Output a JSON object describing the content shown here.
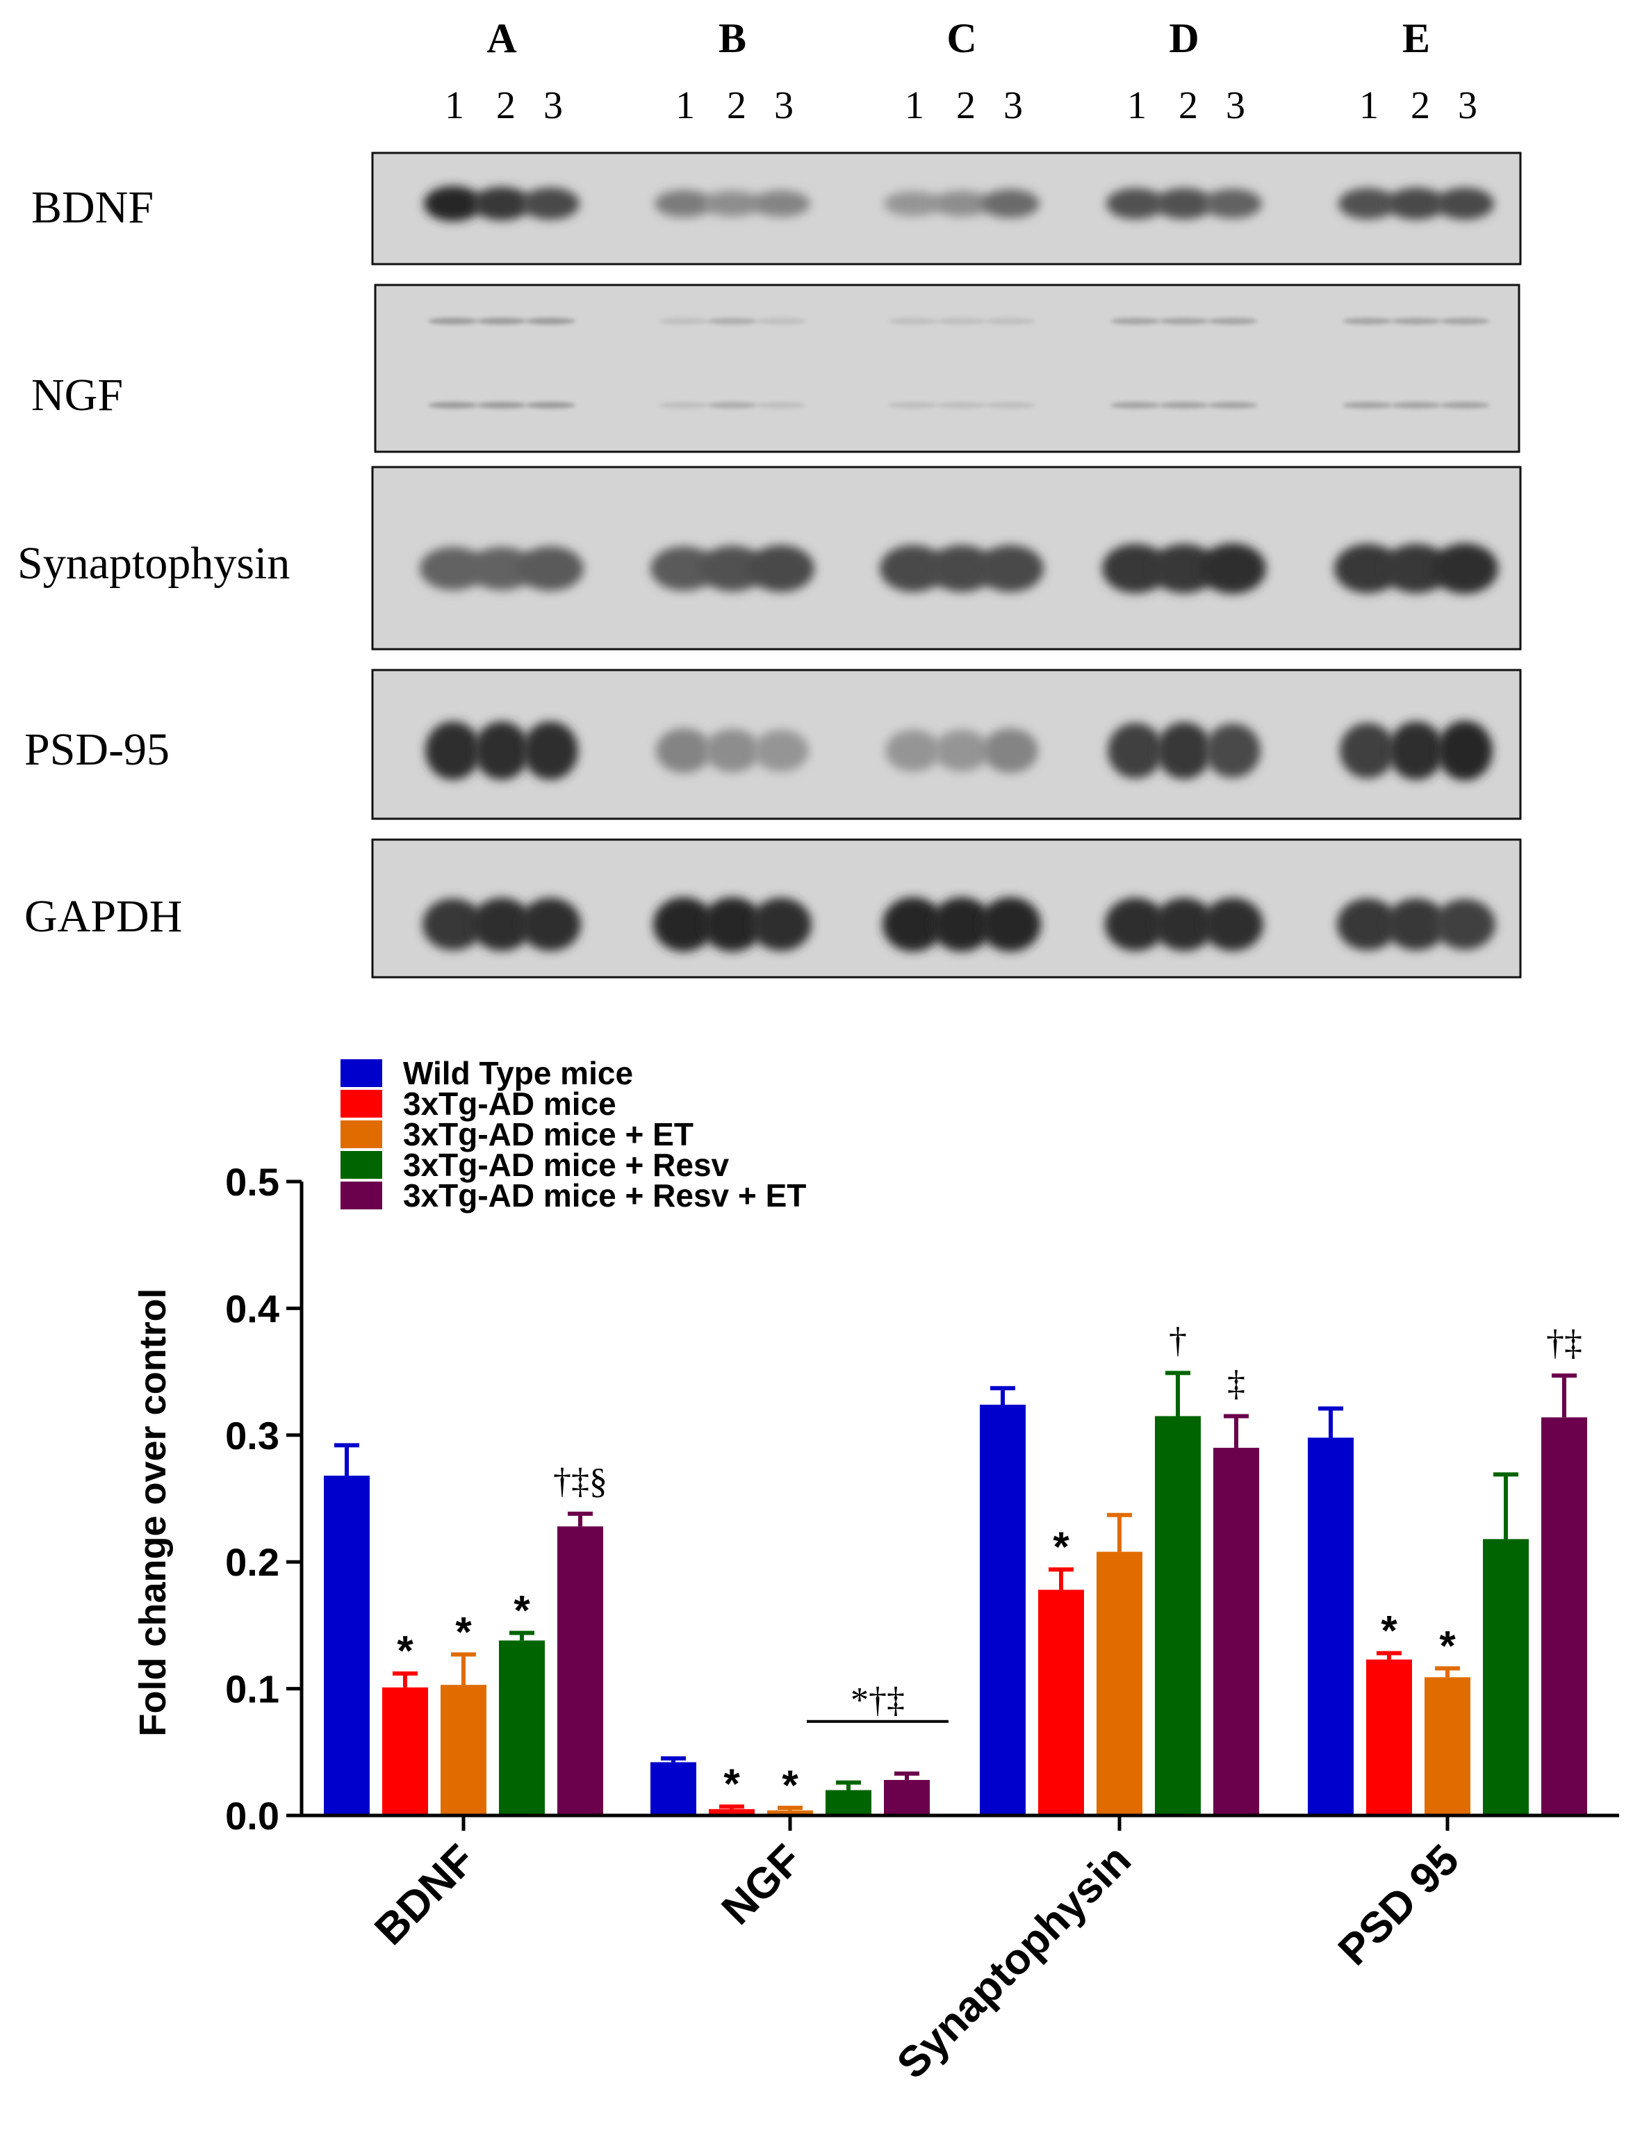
{
  "blot": {
    "groups": [
      "A",
      "B",
      "C",
      "D",
      "E"
    ],
    "lanes": [
      "1",
      "2",
      "3"
    ],
    "rows": [
      {
        "label": "BDNF",
        "intensity": [
          [
            0.95,
            0.85,
            0.75
          ],
          [
            0.45,
            0.35,
            0.4
          ],
          [
            0.3,
            0.35,
            0.55
          ],
          [
            0.7,
            0.7,
            0.6
          ],
          [
            0.7,
            0.75,
            0.75
          ]
        ]
      },
      {
        "label": "NGF",
        "intensity": [
          [
            0.25,
            0.25,
            0.25
          ],
          [
            0.05,
            0.15,
            0.05
          ],
          [
            0.05,
            0.05,
            0.05
          ],
          [
            0.2,
            0.2,
            0.2
          ],
          [
            0.2,
            0.2,
            0.2
          ]
        ]
      },
      {
        "label": "Synaptophysin",
        "intensity": [
          [
            0.6,
            0.6,
            0.65
          ],
          [
            0.65,
            0.7,
            0.75
          ],
          [
            0.75,
            0.75,
            0.75
          ],
          [
            0.85,
            0.85,
            0.9
          ],
          [
            0.85,
            0.85,
            0.9
          ]
        ]
      },
      {
        "label": "PSD-95",
        "intensity": [
          [
            0.9,
            0.9,
            0.9
          ],
          [
            0.4,
            0.35,
            0.3
          ],
          [
            0.3,
            0.3,
            0.4
          ],
          [
            0.8,
            0.85,
            0.75
          ],
          [
            0.8,
            0.9,
            0.95
          ]
        ]
      },
      {
        "label": "GAPDH",
        "intensity": [
          [
            0.85,
            0.9,
            0.9
          ],
          [
            0.95,
            0.95,
            0.9
          ],
          [
            0.95,
            0.95,
            0.95
          ],
          [
            0.9,
            0.9,
            0.9
          ],
          [
            0.85,
            0.85,
            0.8
          ]
        ]
      }
    ]
  },
  "chart_data": {
    "type": "bar",
    "title": "",
    "xlabel": "",
    "ylabel": "Fold change over control",
    "ylim": [
      0,
      0.5
    ],
    "yticks": [
      "0.0",
      "0.1",
      "0.2",
      "0.3",
      "0.4",
      "0.5"
    ],
    "categories": [
      "BDNF",
      "NGF",
      "Synaptophysin",
      "PSD 95"
    ],
    "legend_position": "top-left",
    "series": [
      {
        "name": "Wild Type mice",
        "color": "#0000cc",
        "values": [
          0.268,
          0.042,
          0.324,
          0.298
        ],
        "errors": [
          0.024,
          0.003,
          0.013,
          0.023
        ]
      },
      {
        "name": "3xTg-AD mice",
        "color": "#ff0000",
        "values": [
          0.101,
          0.005,
          0.178,
          0.123
        ],
        "errors": [
          0.011,
          0.002,
          0.016,
          0.005
        ]
      },
      {
        "name": "3xTg-AD mice + ET",
        "color": "#e06c00",
        "values": [
          0.103,
          0.004,
          0.208,
          0.109
        ],
        "errors": [
          0.024,
          0.002,
          0.029,
          0.007
        ]
      },
      {
        "name": "3xTg-AD mice + Resv",
        "color": "#006400",
        "values": [
          0.138,
          0.02,
          0.315,
          0.218
        ],
        "errors": [
          0.006,
          0.006,
          0.034,
          0.051
        ]
      },
      {
        "name": "3xTg-AD mice + Resv + ET",
        "color": "#6b004c",
        "values": [
          0.228,
          0.028,
          0.29,
          0.314
        ],
        "errors": [
          0.01,
          0.005,
          0.025,
          0.033
        ]
      }
    ],
    "annotations": [
      {
        "category": 0,
        "series": 1,
        "text": "*"
      },
      {
        "category": 0,
        "series": 2,
        "text": "*"
      },
      {
        "category": 0,
        "series": 3,
        "text": "*"
      },
      {
        "category": 0,
        "series": 4,
        "text": "†‡§"
      },
      {
        "category": 1,
        "series": 1,
        "text": "*"
      },
      {
        "category": 1,
        "series": 2,
        "text": "*"
      },
      {
        "category": 1,
        "series": "3-4",
        "text": "*†‡",
        "bracket": true
      },
      {
        "category": 2,
        "series": 1,
        "text": "*"
      },
      {
        "category": 2,
        "series": 3,
        "text": "†"
      },
      {
        "category": 2,
        "series": 4,
        "text": "‡"
      },
      {
        "category": 3,
        "series": 1,
        "text": "*"
      },
      {
        "category": 3,
        "series": 2,
        "text": "*"
      },
      {
        "category": 3,
        "series": 4,
        "text": "†‡"
      }
    ]
  }
}
